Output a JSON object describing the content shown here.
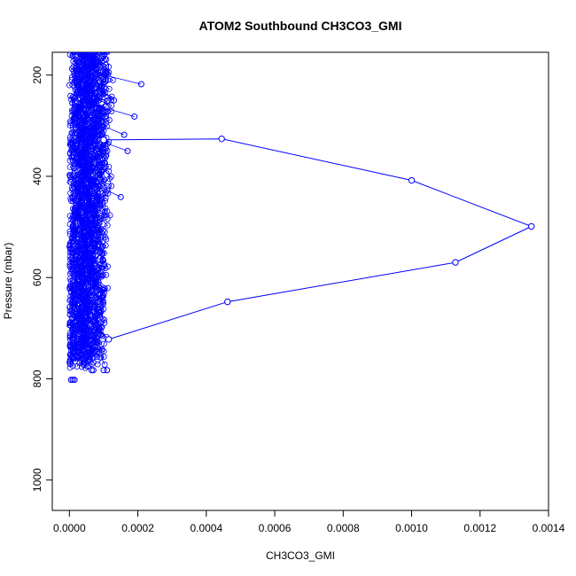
{
  "chart_data": {
    "type": "line",
    "title": "ATOM2 Southbound CH3CO3_GMI",
    "xlabel": "CH3CO3_GMI",
    "ylabel": "Pressure (mbar)",
    "xlim": [
      -5e-05,
      0.0014
    ],
    "ylim": [
      1060,
      155
    ],
    "y_reversed": true,
    "x_ticks": [
      "0.0000",
      "0.0002",
      "0.0004",
      "0.0006",
      "0.0008",
      "0.0010",
      "0.0012",
      "0.0014"
    ],
    "y_ticks": [
      "200",
      "400",
      "600",
      "800",
      "1000"
    ],
    "series_color": "#0000ff",
    "marker": "open-circle",
    "highlight_profile": [
      {
        "x": 0.000115,
        "y": 722
      },
      {
        "x": 0.000462,
        "y": 648
      },
      {
        "x": 0.001128,
        "y": 570
      },
      {
        "x": 0.00135,
        "y": 499
      },
      {
        "x": 0.001,
        "y": 408
      },
      {
        "x": 0.000445,
        "y": 326
      },
      {
        "x": 0.0001,
        "y": 328
      }
    ],
    "outlier_points": [
      {
        "x": 0.00021,
        "y": 218
      },
      {
        "x": 0.00019,
        "y": 282
      },
      {
        "x": 0.00017,
        "y": 350
      },
      {
        "x": 0.00015,
        "y": 441
      },
      {
        "x": 0.00013,
        "y": 250
      },
      {
        "x": 0.00016,
        "y": 318
      }
    ],
    "dense_cluster": {
      "x_range": [
        0.0,
        0.00014
      ],
      "y_range": [
        155,
        802
      ],
      "approx_profiles": 40,
      "points_per_profile": 45,
      "bottom_points": [
        {
          "x": 5e-06,
          "y": 802
        },
        {
          "x": 1e-05,
          "y": 802
        },
        {
          "x": 1.5e-05,
          "y": 802
        },
        {
          "x": 6.5e-05,
          "y": 783
        },
        {
          "x": 7e-05,
          "y": 783
        },
        {
          "x": 0.0001,
          "y": 783
        },
        {
          "x": 0.00011,
          "y": 783
        }
      ]
    }
  }
}
